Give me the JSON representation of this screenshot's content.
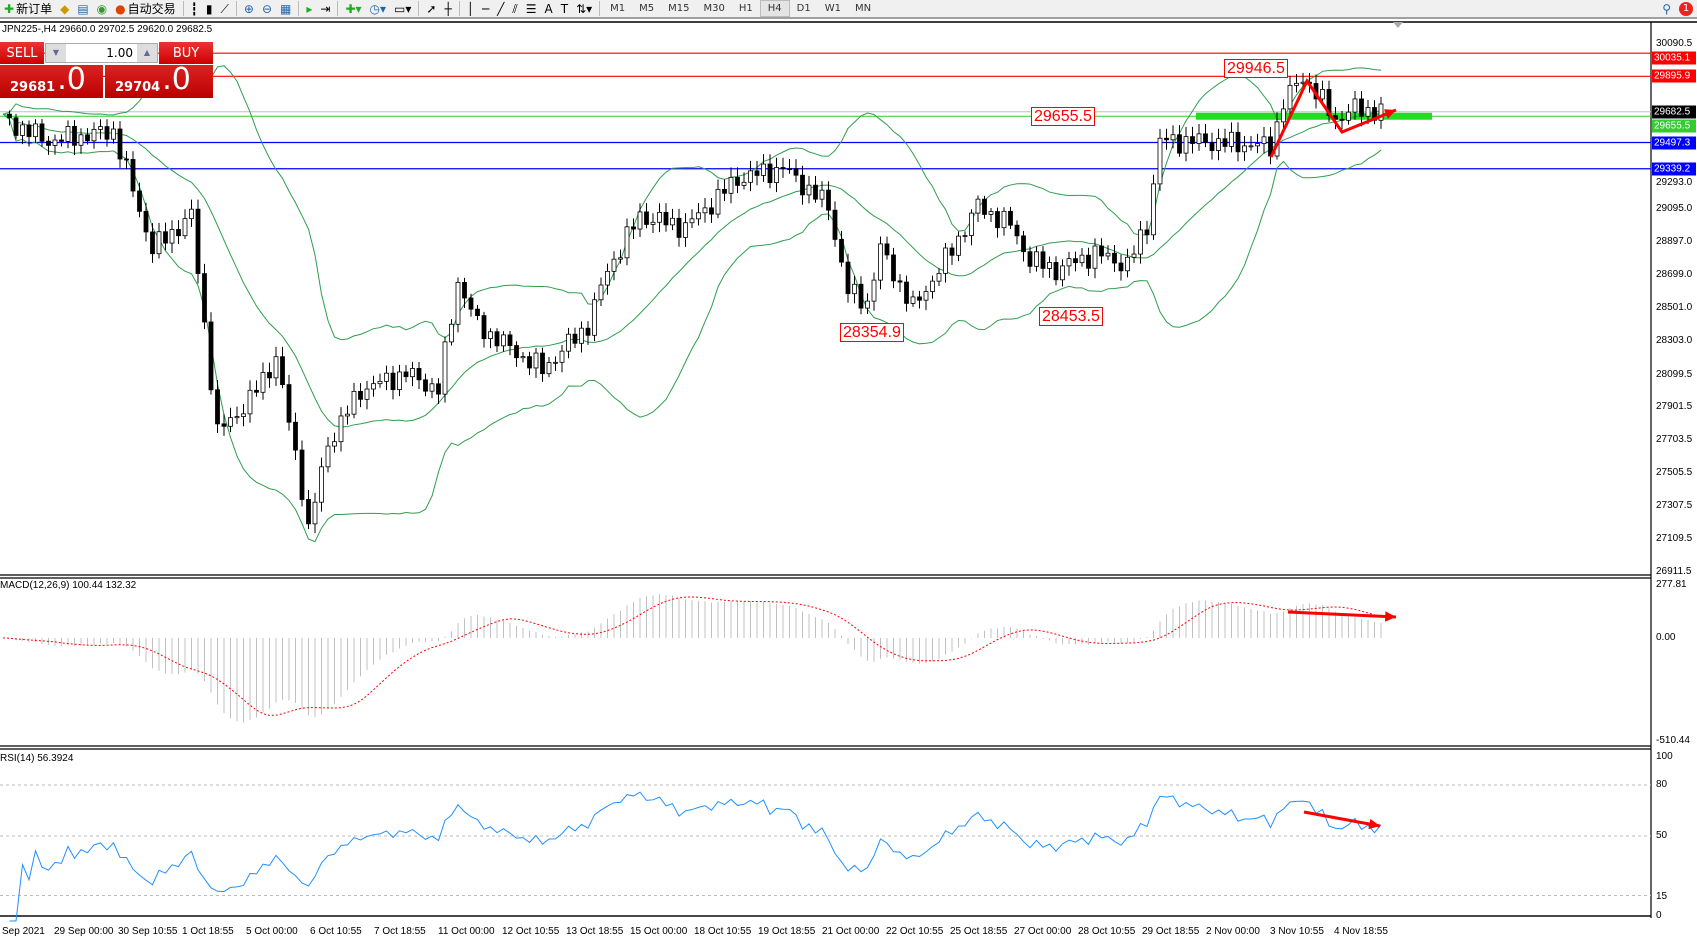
{
  "toolbar": {
    "new_order": "新订单",
    "auto_trading": "自动交易",
    "timeframes": [
      "M1",
      "M5",
      "M15",
      "M30",
      "H1",
      "H4",
      "D1",
      "W1",
      "MN"
    ],
    "active_timeframe": "H4",
    "notification_count": "1"
  },
  "symbol_line": "JPN225-,H4  29660.0 29702.5 29620.0 29682.5",
  "trade_panel": {
    "sell_label": "SELL",
    "buy_label": "BUY",
    "lot": "1.00",
    "sell_price_main": "29681",
    "sell_price_big": ".0",
    "buy_price_main": "29704",
    "buy_price_big": ".0"
  },
  "price_axis": [
    "30090.5",
    "29293.0",
    "29095.0",
    "28897.0",
    "28699.0",
    "28501.0",
    "28303.0",
    "28099.5",
    "27901.5",
    "27703.5",
    "27505.5",
    "27307.5",
    "27109.5",
    "26911.5"
  ],
  "levels": [
    {
      "price": "30035.1",
      "color": "#ff0000"
    },
    {
      "price": "29895.9",
      "color": "#ff0000"
    },
    {
      "price": "29682.5",
      "color": "#000000"
    },
    {
      "price": "29655.5",
      "color": "#33cc33"
    },
    {
      "price": "29497.3",
      "color": "#0000ff"
    },
    {
      "price": "29339.2",
      "color": "#0000ff"
    }
  ],
  "annotations": [
    "29946.5",
    "29655.5",
    "28354.9",
    "28453.5"
  ],
  "macd": {
    "label": "MACD(12,26,9) 100.44 132.32",
    "axis": [
      "277.81",
      "0.00",
      "-510.44"
    ]
  },
  "rsi": {
    "label": "RSI(14) 56.3924",
    "axis": [
      "100",
      "80",
      "50",
      "15",
      "0"
    ]
  },
  "time_axis": [
    "Sep 2021",
    "29 Sep 00:00",
    "30 Sep 10:55",
    "1 Oct 18:55",
    "5 Oct 00:00",
    "6 Oct 10:55",
    "7 Oct 18:55",
    "11 Oct 00:00",
    "12 Oct 10:55",
    "13 Oct 18:55",
    "15 Oct 00:00",
    "18 Oct 10:55",
    "19 Oct 18:55",
    "21 Oct 00:00",
    "22 Oct 10:55",
    "25 Oct 18:55",
    "27 Oct 00:00",
    "28 Oct 10:55",
    "29 Oct 18:55",
    "2 Nov 00:00",
    "3 Nov 10:55",
    "4 Nov 18:55"
  ],
  "colors": {
    "bands": "#2e9e4e",
    "rsi": "#1e90ff",
    "macd_signal": "#ff0000",
    "macd_hist": "#c0c0c0",
    "arrows": "#ff0000"
  },
  "approx_close_path": [
    [
      0,
      29638
    ],
    [
      7,
      29506
    ],
    [
      17,
      29566
    ],
    [
      23,
      28856
    ],
    [
      29,
      29055
    ],
    [
      33,
      27748
    ],
    [
      38,
      27946
    ],
    [
      42,
      28205
    ],
    [
      46,
      27422
    ],
    [
      47,
      27163
    ],
    [
      50,
      27682
    ],
    [
      55,
      28006
    ],
    [
      62,
      28108
    ],
    [
      67,
      28006
    ],
    [
      70,
      28663
    ],
    [
      73,
      28398
    ],
    [
      80,
      28205
    ],
    [
      83,
      28130
    ],
    [
      90,
      28398
    ],
    [
      93,
      28730
    ],
    [
      98,
      29055
    ],
    [
      105,
      28988
    ],
    [
      113,
      29277
    ],
    [
      120,
      29344
    ],
    [
      127,
      29115
    ],
    [
      130,
      28597
    ],
    [
      133,
      28535
    ],
    [
      135,
      28856
    ],
    [
      140,
      28500
    ],
    [
      145,
      28790
    ],
    [
      150,
      29115
    ],
    [
      155,
      29000
    ],
    [
      158,
      28790
    ],
    [
      162,
      28730
    ],
    [
      168,
      28830
    ],
    [
      173,
      28760
    ],
    [
      176,
      29000
    ],
    [
      178,
      29506
    ],
    [
      183,
      29506
    ],
    [
      195,
      29476
    ],
    [
      197,
      29735
    ],
    [
      200,
      29898
    ],
    [
      205,
      29638
    ],
    [
      208,
      29700
    ],
    [
      212,
      29683
    ]
  ]
}
